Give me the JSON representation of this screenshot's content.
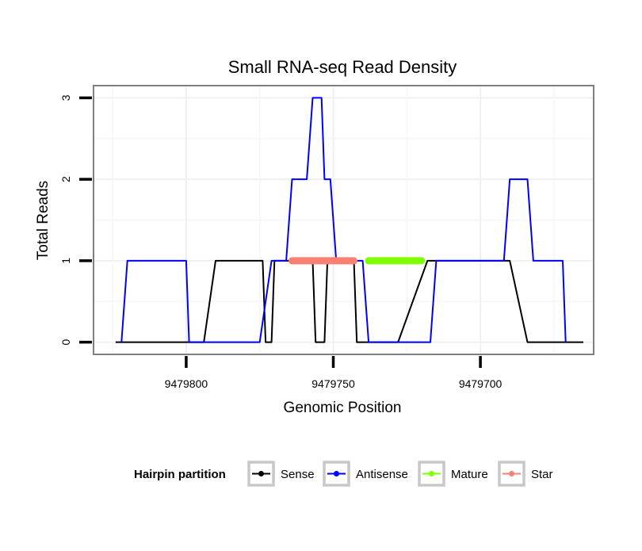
{
  "chart_data": {
    "type": "line",
    "title": "Small RNA-seq Read Density",
    "xlabel": "Genomic Position",
    "ylabel": "Total Reads",
    "x_reversed": true,
    "xlim": [
      9479831.5,
      9479661.5
    ],
    "ylim": [
      -0.15,
      3.15
    ],
    "xticks": [
      {
        "value": 9479800,
        "label": "9479800"
      },
      {
        "value": 9479750,
        "label": "9479750"
      },
      {
        "value": 9479700,
        "label": "9479700"
      }
    ],
    "yticks": [
      {
        "value": 0,
        "label": "0"
      },
      {
        "value": 1,
        "label": "1"
      },
      {
        "value": 2,
        "label": "2"
      },
      {
        "value": 3,
        "label": "3"
      }
    ],
    "grid": true,
    "legend": {
      "title": "Hairpin partition",
      "position": "bottom",
      "entries": [
        {
          "label": "Sense",
          "color": "#000000"
        },
        {
          "label": "Antisense",
          "color": "#0000ff"
        },
        {
          "label": "Mature",
          "color": "#7fff00"
        },
        {
          "label": "Star",
          "color": "#fa8072"
        }
      ]
    },
    "series": [
      {
        "name": "Sense",
        "color": "#000000",
        "width": 2,
        "x": [
          9479824,
          9479815,
          9479794,
          9479790,
          9479774,
          9479773,
          9479771,
          9479770,
          9479757,
          9479756,
          9479753,
          9479752,
          9479743,
          9479742,
          9479728,
          9479718,
          9479714,
          9479690,
          9479684,
          9479665
        ],
        "y": [
          0,
          0,
          0,
          1,
          1,
          0,
          0,
          1,
          1,
          0,
          0,
          1,
          1,
          0,
          0,
          1,
          1,
          1,
          0,
          0
        ]
      },
      {
        "name": "Antisense",
        "color": "#0000ff",
        "width": 2,
        "x": [
          9479822,
          9479820,
          9479800,
          9479799,
          9479775,
          9479771,
          9479766,
          9479764,
          9479759,
          9479757,
          9479754,
          9479753,
          9479751,
          9479749,
          9479740,
          9479738,
          9479728,
          9479722,
          9479717,
          9479715,
          9479703,
          9479702,
          9479692,
          9479690,
          9479684,
          9479682,
          9479672,
          9479671
        ],
        "y": [
          0,
          1,
          1,
          0,
          0,
          1,
          1,
          2,
          2,
          3,
          3,
          2,
          2,
          1,
          1,
          0,
          0,
          0,
          0,
          1,
          1,
          1,
          1,
          2,
          2,
          1,
          1,
          0
        ]
      },
      {
        "name": "Star",
        "color": "#fa8072",
        "width": 9,
        "x": [
          9479764,
          9479743
        ],
        "y": [
          1,
          1
        ]
      },
      {
        "name": "Mature",
        "color": "#7fff00",
        "width": 9,
        "x": [
          9479738,
          9479720
        ],
        "y": [
          1,
          1
        ]
      }
    ]
  }
}
